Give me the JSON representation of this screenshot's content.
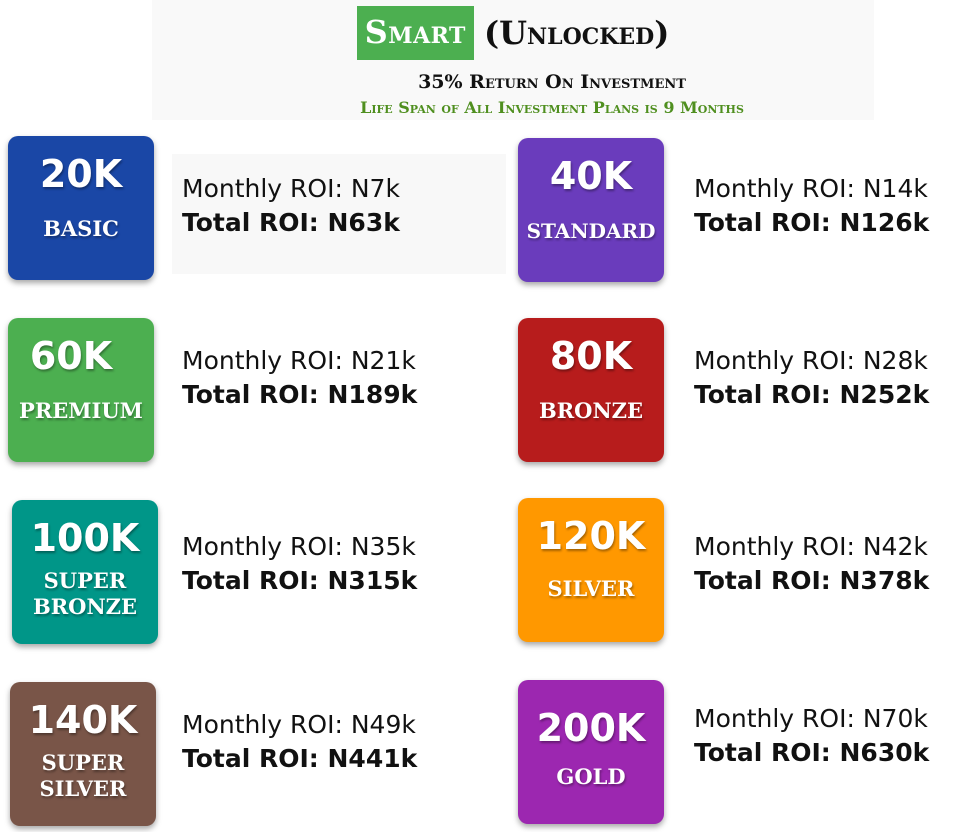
{
  "header": {
    "brand": "Smart",
    "status": "(Unlocked)",
    "subtitle": "35% Return On Investment",
    "lifespan": "Life Span of All Investment Plans is 9 Months"
  },
  "colors": {
    "brand_green": "#4caf50",
    "lifespan_green": "#4f8f1f"
  },
  "plans": [
    {
      "amount": "20K",
      "name": "BASIC",
      "monthly": "Monthly ROI: N7k",
      "total": "Total ROI: N63k",
      "color": "#1a47a6"
    },
    {
      "amount": "40K",
      "name": "STANDARD",
      "monthly": "Monthly ROI: N14k",
      "total": "Total ROI: N126k",
      "color": "#6a3cbc"
    },
    {
      "amount": "60K",
      "name": "PREMIUM",
      "monthly": "Monthly ROI: N21k",
      "total": "Total ROI: N189k",
      "color": "#4caf50"
    },
    {
      "amount": "80K",
      "name": "BRONZE",
      "monthly": "Monthly ROI: N28k",
      "total": "Total ROI: N252k",
      "color": "#b71c1c"
    },
    {
      "amount": "100K",
      "name": "SUPER\nBRONZE",
      "monthly": "Monthly ROI: N35k",
      "total": "Total ROI: N315k",
      "color": "#009688"
    },
    {
      "amount": "120K",
      "name": "SILVER",
      "monthly": "Monthly ROI: N42k",
      "total": "Total ROI: N378k",
      "color": "#ff9800"
    },
    {
      "amount": "140K",
      "name": "SUPER\nSILVER",
      "monthly": "Monthly ROI: N49k",
      "total": "Total ROI: N441k",
      "color": "#795548"
    },
    {
      "amount": "200K",
      "name": "GOLD",
      "monthly": "Monthly ROI: N70k",
      "total": "Total ROI: N630k",
      "color": "#9c27b0"
    }
  ]
}
